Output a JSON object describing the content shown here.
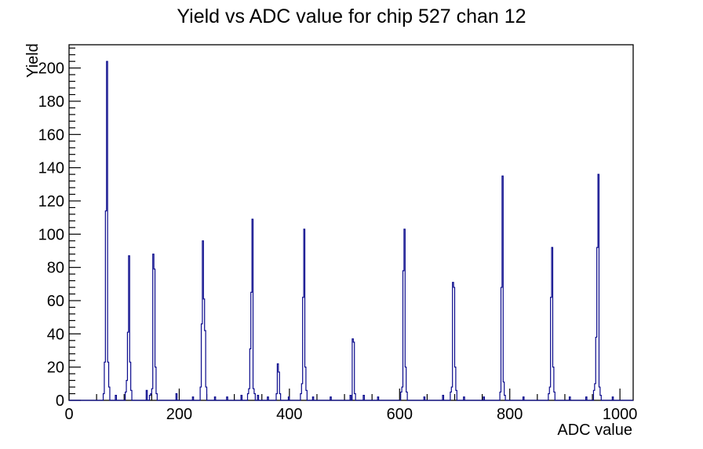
{
  "chart_data": {
    "type": "bar",
    "title": "Yield vs ADC value for chip 527 chan 12",
    "xlabel": "ADC value",
    "ylabel": "Yield",
    "xlim": [
      0,
      1024
    ],
    "ylim": [
      0,
      214
    ],
    "x_major_ticks": [
      0,
      200,
      400,
      600,
      800,
      1000
    ],
    "x_minor_step": 50,
    "y_major_ticks": [
      0,
      20,
      40,
      60,
      80,
      100,
      120,
      140,
      160,
      180,
      200
    ],
    "y_minor_step": 4,
    "grid": false,
    "legend": "none",
    "background": "#ffffff",
    "axis_color": "#000000",
    "line_color": "#0a0a8c",
    "bin_width": 2,
    "bins": [
      [
        62,
        4
      ],
      [
        64,
        23
      ],
      [
        66,
        114
      ],
      [
        68,
        204
      ],
      [
        70,
        23
      ],
      [
        72,
        8
      ],
      [
        84,
        3
      ],
      [
        102,
        5
      ],
      [
        104,
        12
      ],
      [
        106,
        41
      ],
      [
        108,
        87
      ],
      [
        110,
        23
      ],
      [
        112,
        6
      ],
      [
        140,
        6
      ],
      [
        146,
        3
      ],
      [
        148,
        4
      ],
      [
        150,
        7
      ],
      [
        152,
        88
      ],
      [
        154,
        79
      ],
      [
        156,
        20
      ],
      [
        158,
        4
      ],
      [
        194,
        4
      ],
      [
        224,
        2
      ],
      [
        238,
        8
      ],
      [
        240,
        46
      ],
      [
        242,
        96
      ],
      [
        244,
        61
      ],
      [
        246,
        42
      ],
      [
        248,
        8
      ],
      [
        264,
        2
      ],
      [
        286,
        2
      ],
      [
        312,
        3
      ],
      [
        324,
        4
      ],
      [
        326,
        7
      ],
      [
        328,
        31
      ],
      [
        330,
        65
      ],
      [
        332,
        109
      ],
      [
        334,
        7
      ],
      [
        336,
        4
      ],
      [
        342,
        3
      ],
      [
        360,
        2
      ],
      [
        376,
        4
      ],
      [
        378,
        22
      ],
      [
        380,
        17
      ],
      [
        382,
        4
      ],
      [
        398,
        2
      ],
      [
        420,
        4
      ],
      [
        422,
        10
      ],
      [
        424,
        62
      ],
      [
        426,
        103
      ],
      [
        428,
        20
      ],
      [
        430,
        6
      ],
      [
        442,
        2
      ],
      [
        474,
        2
      ],
      [
        510,
        3
      ],
      [
        514,
        37
      ],
      [
        516,
        35
      ],
      [
        518,
        4
      ],
      [
        534,
        3
      ],
      [
        560,
        2
      ],
      [
        602,
        5
      ],
      [
        604,
        8
      ],
      [
        606,
        78
      ],
      [
        608,
        103
      ],
      [
        610,
        20
      ],
      [
        612,
        5
      ],
      [
        644,
        2
      ],
      [
        678,
        3
      ],
      [
        692,
        5
      ],
      [
        694,
        8
      ],
      [
        696,
        71
      ],
      [
        698,
        68
      ],
      [
        700,
        20
      ],
      [
        702,
        6
      ],
      [
        716,
        2
      ],
      [
        752,
        2
      ],
      [
        782,
        5
      ],
      [
        784,
        68
      ],
      [
        786,
        135
      ],
      [
        788,
        11
      ],
      [
        790,
        3
      ],
      [
        824,
        2
      ],
      [
        870,
        4
      ],
      [
        872,
        8
      ],
      [
        874,
        62
      ],
      [
        876,
        92
      ],
      [
        878,
        20
      ],
      [
        880,
        5
      ],
      [
        908,
        2
      ],
      [
        938,
        2
      ],
      [
        952,
        6
      ],
      [
        954,
        10
      ],
      [
        956,
        38
      ],
      [
        958,
        92
      ],
      [
        960,
        136
      ],
      [
        962,
        8
      ],
      [
        964,
        3
      ],
      [
        986,
        2
      ]
    ]
  }
}
